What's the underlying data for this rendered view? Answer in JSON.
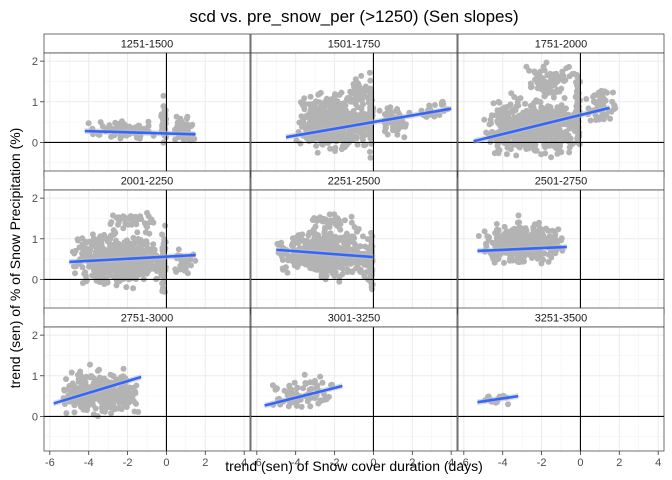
{
  "chart_data": {
    "type": "scatter",
    "title": "scd vs. pre_snow_per (>1250) (Sen slopes)",
    "xlabel": "trend (sen) of Snow cover duration (days)",
    "ylabel": "trend (sen) of % of Snow Precipitation (%)",
    "xlim": [
      -6.3,
      4.3
    ],
    "ylim": [
      -0.85,
      2.2
    ],
    "xticks": [
      -6,
      -4,
      -2,
      0,
      2,
      4
    ],
    "xtick_labels": [
      "-6",
      "-4",
      "-2",
      "0",
      "2",
      "4"
    ],
    "yticks": [
      0,
      1,
      2
    ],
    "ytick_labels": [
      "0",
      "1",
      "2"
    ],
    "reference_lines": {
      "x": 0,
      "y": 0
    },
    "point_color": "#b3b3b3",
    "line_color": "#3366ff",
    "ribbon_color": "#bdbdbd",
    "panels": [
      {
        "label": "1251-1500",
        "fit": {
          "x": [
            -4.2,
            1.5
          ],
          "y": [
            0.28,
            0.2
          ]
        },
        "clusters": [
          {
            "x": [
              -4.2,
              -0.5
            ],
            "y": [
              0.0,
              0.6
            ],
            "n": 70
          },
          {
            "x": [
              0.2,
              1.6
            ],
            "y": [
              -0.1,
              0.8
            ],
            "n": 45
          },
          {
            "x": [
              -0.3,
              0.0
            ],
            "y": [
              -0.2,
              1.2
            ],
            "n": 40
          }
        ]
      },
      {
        "label": "1501-1750",
        "fit": {
          "x": [
            -4.5,
            4.0
          ],
          "y": [
            0.13,
            0.83
          ]
        },
        "clusters": [
          {
            "x": [
              -4.0,
              0.0
            ],
            "y": [
              -0.4,
              1.4
            ],
            "n": 420
          },
          {
            "x": [
              -1.5,
              -0.2
            ],
            "y": [
              0.8,
              1.8
            ],
            "n": 40
          },
          {
            "x": [
              0.2,
              2.0
            ],
            "y": [
              0.0,
              1.0
            ],
            "n": 70
          },
          {
            "x": [
              2.0,
              4.0
            ],
            "y": [
              0.5,
              1.1
            ],
            "n": 20
          },
          {
            "x": [
              -0.3,
              0.0
            ],
            "y": [
              -0.5,
              1.9
            ],
            "n": 60
          }
        ]
      },
      {
        "label": "1751-2000",
        "fit": {
          "x": [
            -5.5,
            1.5
          ],
          "y": [
            0.03,
            0.85
          ]
        },
        "clusters": [
          {
            "x": [
              -5.0,
              0.0
            ],
            "y": [
              -0.5,
              1.3
            ],
            "n": 550
          },
          {
            "x": [
              -3.0,
              0.0
            ],
            "y": [
              1.0,
              2.05
            ],
            "n": 90
          },
          {
            "x": [
              0.2,
              2.0
            ],
            "y": [
              0.2,
              1.6
            ],
            "n": 50
          },
          {
            "x": [
              -0.3,
              0.0
            ],
            "y": [
              -0.7,
              2.0
            ],
            "n": 60
          }
        ]
      },
      {
        "label": "2001-2250",
        "fit": {
          "x": [
            -5.0,
            1.5
          ],
          "y": [
            0.43,
            0.6
          ]
        },
        "clusters": [
          {
            "x": [
              -5.0,
              0.0
            ],
            "y": [
              -0.3,
              1.3
            ],
            "n": 520
          },
          {
            "x": [
              -3.0,
              -0.5
            ],
            "y": [
              1.2,
              1.7
            ],
            "n": 40
          },
          {
            "x": [
              0.2,
              1.6
            ],
            "y": [
              0.0,
              0.8
            ],
            "n": 25
          },
          {
            "x": [
              -0.3,
              0.0
            ],
            "y": [
              -0.7,
              1.6
            ],
            "n": 50
          }
        ]
      },
      {
        "label": "2251-2500",
        "fit": {
          "x": [
            -5.0,
            0.0
          ],
          "y": [
            0.73,
            0.55
          ]
        },
        "clusters": [
          {
            "x": [
              -5.0,
              0.0
            ],
            "y": [
              -0.1,
              1.4
            ],
            "n": 500
          },
          {
            "x": [
              -3.5,
              -1.0
            ],
            "y": [
              1.2,
              1.7
            ],
            "n": 30
          },
          {
            "x": [
              -0.2,
              0.0
            ],
            "y": [
              -0.7,
              1.5
            ],
            "n": 40
          }
        ]
      },
      {
        "label": "2501-2750",
        "fit": {
          "x": [
            -5.3,
            -0.7
          ],
          "y": [
            0.7,
            0.8
          ]
        },
        "clusters": [
          {
            "x": [
              -5.3,
              -0.8
            ],
            "y": [
              0.2,
              1.6
            ],
            "n": 350
          }
        ]
      },
      {
        "label": "2751-3000",
        "fit": {
          "x": [
            -5.8,
            -1.3
          ],
          "y": [
            0.32,
            0.97
          ]
        },
        "clusters": [
          {
            "x": [
              -5.5,
              -1.3
            ],
            "y": [
              -0.1,
              1.3
            ],
            "n": 320
          }
        ]
      },
      {
        "label": "3001-3250",
        "fit": {
          "x": [
            -5.6,
            -1.6
          ],
          "y": [
            0.27,
            0.75
          ]
        },
        "clusters": [
          {
            "x": [
              -5.5,
              -1.5
            ],
            "y": [
              0.1,
              1.1
            ],
            "n": 80
          }
        ]
      },
      {
        "label": "3251-3500",
        "fit": {
          "x": [
            -5.3,
            -3.2
          ],
          "y": [
            0.35,
            0.5
          ]
        },
        "clusters": [
          {
            "x": [
              -5.3,
              -3.3
            ],
            "y": [
              0.25,
              0.6
            ],
            "n": 15
          }
        ]
      }
    ]
  }
}
